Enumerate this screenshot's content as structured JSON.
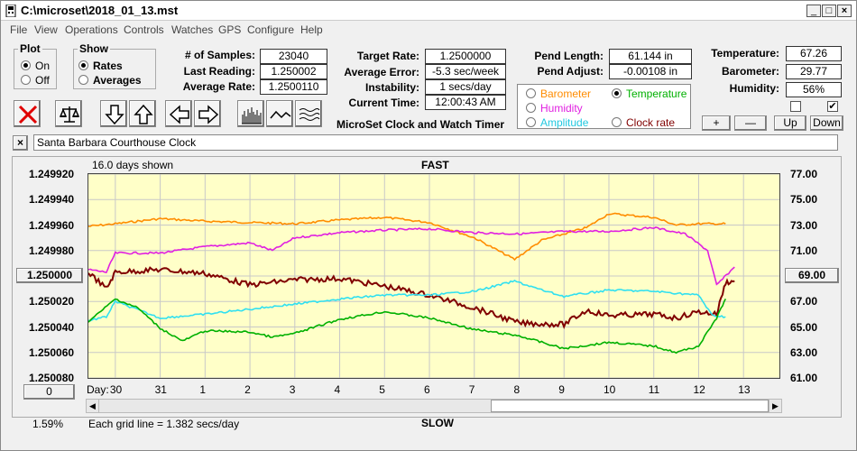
{
  "window": {
    "title": "C:\\microset\\2018_01_13.mst"
  },
  "menu": [
    "File",
    "View",
    "Operations",
    "Controls",
    "Watches",
    "GPS",
    "Configure",
    "Help"
  ],
  "plot_group": {
    "legend": "Plot",
    "on": "On",
    "off": "Off",
    "selected": "On"
  },
  "show_group": {
    "legend": "Show",
    "rates": "Rates",
    "averages": "Averages",
    "selected": "Rates"
  },
  "stats": {
    "samples_label": "# of Samples:",
    "samples": "23040",
    "last_reading_label": "Last Reading:",
    "last_reading": "1.250002",
    "average_rate_label": "Average Rate:",
    "average_rate": "1.2500110",
    "target_rate_label": "Target Rate:",
    "target_rate": "1.2500000",
    "average_error_label": "Average Error:",
    "average_error": "-5.3 sec/week",
    "instability_label": "Instability:",
    "instability": "1 secs/day",
    "current_time_label": "Current Time:",
    "current_time": "12:00:43 AM",
    "pend_length_label": "Pend Length:",
    "pend_length": "61.144 in",
    "pend_adjust_label": "Pend Adjust:",
    "pend_adjust": "-0.00108 in",
    "temperature_label": "Temperature:",
    "temperature": "67.26",
    "barometer_label": "Barometer:",
    "barometer": "29.77",
    "humidity_label": "Humidity:",
    "humidity": "56%"
  },
  "app_caption": "MicroSet Clock and Watch Timer",
  "series_select": {
    "barometer": "Barometer",
    "temperature": "Temperature",
    "humidity": "Humidity",
    "amplitude": "Amplitude",
    "clock_rate": "Clock rate",
    "selected": "Temperature"
  },
  "right_buttons": {
    "plus": "+",
    "minus": "—",
    "up": "Up",
    "down": "Down"
  },
  "checkboxes": {
    "left_checked": false,
    "right_checked": true
  },
  "clock_name": "Santa Barbara Courthouse Clock",
  "chart_header": {
    "days_shown": "16.0 days shown",
    "fast": "FAST",
    "slow": "SLOW",
    "grid_note": "Each grid line = 1.382 secs/day",
    "percent": "1.59%",
    "day_label": "Day:",
    "left_button": "1.250000",
    "right_button": "69.00",
    "zero_button": "0"
  },
  "colors": {
    "barometer": "#ff8c00",
    "temperature": "#00b000",
    "humidity": "#e020e0",
    "amplitude": "#30e0f0",
    "clock_rate": "#800000",
    "plot_bg": "#ffffc8"
  },
  "chart_data": {
    "type": "line",
    "x_ticks": [
      "30",
      "31",
      "1",
      "2",
      "3",
      "4",
      "5",
      "6",
      "7",
      "8",
      "9",
      "10",
      "11",
      "12",
      "13"
    ],
    "y_left_ticks": [
      "1.249920",
      "1.249940",
      "1.249960",
      "1.249980",
      "1.250000",
      "1.250020",
      "1.250040",
      "1.250060",
      "1.250080"
    ],
    "y_left_range": [
      1.24992,
      1.25008
    ],
    "y_right_ticks": [
      "77.00",
      "75.00",
      "73.00",
      "71.00",
      "69.00",
      "67.00",
      "65.00",
      "63.00",
      "61.00"
    ],
    "y_right_range": [
      61,
      77
    ],
    "x_range": [
      -0.6,
      14.8
    ],
    "grid": true,
    "series": [
      {
        "name": "Barometer",
        "axis": "right",
        "points": [
          [
            -0.6,
            72.9
          ],
          [
            0,
            73.1
          ],
          [
            1,
            73.5
          ],
          [
            2,
            73.3
          ],
          [
            3,
            73.2
          ],
          [
            4,
            73.1
          ],
          [
            5,
            73.4
          ],
          [
            6,
            73.6
          ],
          [
            7,
            73.2
          ],
          [
            8,
            72.0
          ],
          [
            8.9,
            70.3
          ],
          [
            9.5,
            71.8
          ],
          [
            10.5,
            72.8
          ],
          [
            11,
            73.9
          ],
          [
            12,
            73.6
          ],
          [
            12.5,
            73.0
          ],
          [
            13,
            73.1
          ],
          [
            13.6,
            73.1
          ]
        ]
      },
      {
        "name": "Humidity",
        "axis": "right",
        "points": [
          [
            -0.6,
            69.5
          ],
          [
            -0.2,
            69.3
          ],
          [
            0,
            70.8
          ],
          [
            1,
            70.8
          ],
          [
            2,
            71.3
          ],
          [
            3,
            71.6
          ],
          [
            3.5,
            71.0
          ],
          [
            4,
            72.0
          ],
          [
            5,
            72.4
          ],
          [
            6,
            72.6
          ],
          [
            7,
            72.7
          ],
          [
            8,
            72.4
          ],
          [
            9,
            72.3
          ],
          [
            10,
            72.5
          ],
          [
            11,
            72.5
          ],
          [
            12,
            72.8
          ],
          [
            12.7,
            72.3
          ],
          [
            13.2,
            71.0
          ],
          [
            13.4,
            68.3
          ],
          [
            13.8,
            69.7
          ]
        ]
      },
      {
        "name": "Clock rate",
        "axis": "left",
        "points": [
          [
            -0.6,
            1.249997
          ],
          [
            -0.2,
            1.25001
          ],
          [
            0,
            1.249997
          ],
          [
            1,
            1.249995
          ],
          [
            2,
            1.249998
          ],
          [
            3,
            1.250007
          ],
          [
            3.5,
            1.250005
          ],
          [
            4,
            1.250003
          ],
          [
            5,
            1.250002
          ],
          [
            6,
            1.250008
          ],
          [
            7,
            1.250015
          ],
          [
            8,
            1.250025
          ],
          [
            9,
            1.250037
          ],
          [
            10,
            1.250038
          ],
          [
            10.5,
            1.250027
          ],
          [
            11,
            1.250031
          ],
          [
            12,
            1.25003
          ],
          [
            12.5,
            1.250033
          ],
          [
            13,
            1.250028
          ],
          [
            13.4,
            1.25003
          ],
          [
            13.6,
            1.250005
          ],
          [
            13.8,
            1.250004
          ]
        ]
      },
      {
        "name": "Amplitude",
        "axis": "right",
        "points": [
          [
            -0.6,
            65.5
          ],
          [
            -0.2,
            65.8
          ],
          [
            0,
            67.0
          ],
          [
            1,
            65.7
          ],
          [
            2,
            66.0
          ],
          [
            3,
            66.4
          ],
          [
            4,
            66.8
          ],
          [
            5,
            67.2
          ],
          [
            6,
            67.5
          ],
          [
            7,
            67.5
          ],
          [
            8,
            67.8
          ],
          [
            8.9,
            68.6
          ],
          [
            9.5,
            67.9
          ],
          [
            10,
            67.4
          ],
          [
            11,
            67.9
          ],
          [
            12,
            67.8
          ],
          [
            13,
            67.5
          ],
          [
            13.3,
            65.9
          ],
          [
            13.6,
            65.8
          ]
        ]
      },
      {
        "name": "Temperature",
        "axis": "right",
        "points": [
          [
            -0.6,
            65.4
          ],
          [
            0,
            67.2
          ],
          [
            0.5,
            66.5
          ],
          [
            1,
            64.9
          ],
          [
            1.5,
            63.9
          ],
          [
            2,
            64.7
          ],
          [
            3,
            64.6
          ],
          [
            3.5,
            64.2
          ],
          [
            4,
            64.5
          ],
          [
            5,
            65.6
          ],
          [
            6,
            66.2
          ],
          [
            7,
            65.7
          ],
          [
            8,
            64.8
          ],
          [
            9,
            64.3
          ],
          [
            10,
            63.3
          ],
          [
            11,
            63.8
          ],
          [
            12,
            63.5
          ],
          [
            12.5,
            63.0
          ],
          [
            13,
            63.5
          ],
          [
            13.4,
            65.7
          ],
          [
            13.6,
            67.2
          ]
        ]
      }
    ]
  }
}
